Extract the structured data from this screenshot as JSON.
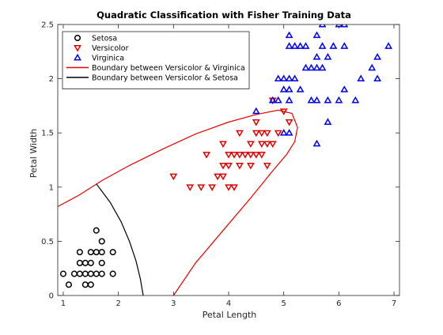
{
  "chart_data": {
    "type": "scatter",
    "title": "Quadratic Classification with Fisher Training Data",
    "xlabel": "Petal Length",
    "ylabel": "Petal Width",
    "xlim": [
      0.9,
      7.1
    ],
    "ylim": [
      0,
      2.5
    ],
    "xticks": [
      1,
      2,
      3,
      4,
      5,
      6,
      7
    ],
    "yticks": [
      0,
      0.5,
      1,
      1.5,
      2,
      2.5
    ],
    "xtick_labels": [
      "1",
      "2",
      "3",
      "4",
      "5",
      "6",
      "7"
    ],
    "ytick_labels": [
      "0",
      "0.5",
      "1",
      "1.5",
      "2",
      "2.5"
    ],
    "grid": false,
    "legend_position": "top-left",
    "series": [
      {
        "name": "Setosa",
        "marker": "circle",
        "color": "#000000",
        "points": [
          [
            1.0,
            0.2
          ],
          [
            1.1,
            0.1
          ],
          [
            1.2,
            0.2
          ],
          [
            1.3,
            0.2
          ],
          [
            1.3,
            0.3
          ],
          [
            1.3,
            0.4
          ],
          [
            1.4,
            0.1
          ],
          [
            1.4,
            0.2
          ],
          [
            1.4,
            0.3
          ],
          [
            1.5,
            0.1
          ],
          [
            1.5,
            0.2
          ],
          [
            1.5,
            0.3
          ],
          [
            1.5,
            0.4
          ],
          [
            1.6,
            0.2
          ],
          [
            1.6,
            0.4
          ],
          [
            1.6,
            0.6
          ],
          [
            1.7,
            0.2
          ],
          [
            1.7,
            0.3
          ],
          [
            1.7,
            0.4
          ],
          [
            1.7,
            0.5
          ],
          [
            1.9,
            0.2
          ],
          [
            1.9,
            0.4
          ]
        ]
      },
      {
        "name": "Versicolor",
        "marker": "triangle-down",
        "color": "#e00000",
        "points": [
          [
            3.0,
            1.1
          ],
          [
            3.3,
            1.0
          ],
          [
            3.5,
            1.0
          ],
          [
            3.6,
            1.3
          ],
          [
            3.7,
            1.0
          ],
          [
            3.8,
            1.1
          ],
          [
            3.9,
            1.1
          ],
          [
            3.9,
            1.2
          ],
          [
            3.9,
            1.4
          ],
          [
            4.0,
            1.0
          ],
          [
            4.0,
            1.2
          ],
          [
            4.0,
            1.3
          ],
          [
            4.1,
            1.0
          ],
          [
            4.1,
            1.3
          ],
          [
            4.2,
            1.2
          ],
          [
            4.2,
            1.3
          ],
          [
            4.2,
            1.5
          ],
          [
            4.3,
            1.3
          ],
          [
            4.4,
            1.2
          ],
          [
            4.4,
            1.3
          ],
          [
            4.4,
            1.4
          ],
          [
            4.5,
            1.3
          ],
          [
            4.5,
            1.5
          ],
          [
            4.5,
            1.6
          ],
          [
            4.6,
            1.3
          ],
          [
            4.6,
            1.4
          ],
          [
            4.6,
            1.5
          ],
          [
            4.7,
            1.2
          ],
          [
            4.7,
            1.4
          ],
          [
            4.7,
            1.5
          ],
          [
            4.8,
            1.4
          ],
          [
            4.8,
            1.8
          ],
          [
            4.9,
            1.5
          ],
          [
            5.0,
            1.7
          ],
          [
            5.1,
            1.6
          ]
        ]
      },
      {
        "name": "Virginica",
        "marker": "triangle-up",
        "color": "#0000ee",
        "points": [
          [
            4.5,
            1.7
          ],
          [
            4.8,
            1.8
          ],
          [
            4.9,
            1.8
          ],
          [
            4.9,
            2.0
          ],
          [
            5.0,
            1.5
          ],
          [
            5.0,
            1.9
          ],
          [
            5.0,
            2.0
          ],
          [
            5.1,
            1.5
          ],
          [
            5.1,
            1.8
          ],
          [
            5.1,
            1.9
          ],
          [
            5.1,
            2.0
          ],
          [
            5.1,
            2.3
          ],
          [
            5.1,
            2.4
          ],
          [
            5.2,
            2.0
          ],
          [
            5.2,
            2.3
          ],
          [
            5.3,
            1.9
          ],
          [
            5.3,
            2.3
          ],
          [
            5.4,
            2.1
          ],
          [
            5.4,
            2.3
          ],
          [
            5.5,
            1.8
          ],
          [
            5.5,
            2.1
          ],
          [
            5.6,
            1.4
          ],
          [
            5.6,
            1.8
          ],
          [
            5.6,
            2.1
          ],
          [
            5.6,
            2.2
          ],
          [
            5.6,
            2.4
          ],
          [
            5.7,
            2.1
          ],
          [
            5.7,
            2.3
          ],
          [
            5.7,
            2.5
          ],
          [
            5.8,
            1.6
          ],
          [
            5.8,
            1.8
          ],
          [
            5.8,
            2.2
          ],
          [
            5.9,
            2.3
          ],
          [
            6.0,
            1.8
          ],
          [
            6.0,
            2.5
          ],
          [
            6.1,
            1.9
          ],
          [
            6.1,
            2.3
          ],
          [
            6.1,
            2.5
          ],
          [
            6.3,
            1.8
          ],
          [
            6.4,
            2.0
          ],
          [
            6.6,
            2.1
          ],
          [
            6.7,
            2.0
          ],
          [
            6.7,
            2.2
          ],
          [
            6.9,
            2.3
          ]
        ]
      }
    ],
    "boundaries": [
      {
        "name": "Boundary between Versicolor & Virginica",
        "color": "#ee0000",
        "points": [
          [
            0.9,
            0.82
          ],
          [
            1.3,
            0.93
          ],
          [
            1.7,
            1.06
          ],
          [
            2.2,
            1.2
          ],
          [
            2.8,
            1.35
          ],
          [
            3.4,
            1.49
          ],
          [
            4.0,
            1.6
          ],
          [
            4.5,
            1.67
          ],
          [
            4.9,
            1.71
          ],
          [
            5.15,
            1.68
          ],
          [
            5.25,
            1.55
          ],
          [
            5.2,
            1.42
          ],
          [
            5.05,
            1.3
          ],
          [
            4.8,
            1.15
          ],
          [
            4.4,
            0.9
          ],
          [
            3.9,
            0.6
          ],
          [
            3.4,
            0.3
          ],
          [
            3.0,
            0.0
          ]
        ]
      },
      {
        "name": "Boundary between Versicolor & Setosa",
        "color": "#000000",
        "points": [
          [
            1.6,
            1.03
          ],
          [
            1.85,
            0.86
          ],
          [
            2.05,
            0.68
          ],
          [
            2.2,
            0.5
          ],
          [
            2.32,
            0.32
          ],
          [
            2.4,
            0.15
          ],
          [
            2.45,
            0.0
          ]
        ]
      }
    ]
  }
}
